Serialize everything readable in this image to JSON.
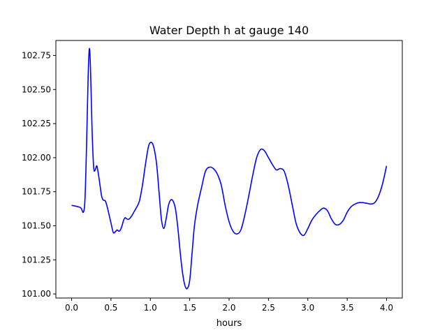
{
  "chart_data": {
    "type": "line",
    "title": "Water Depth h at gauge 140",
    "xlabel": "hours",
    "ylabel": "",
    "xlim": [
      -0.2,
      4.2
    ],
    "ylim": [
      100.97,
      102.86
    ],
    "xticks": [
      0.0,
      0.5,
      1.0,
      1.5,
      2.0,
      2.5,
      3.0,
      3.5,
      4.0
    ],
    "xtick_labels": [
      "0.0",
      "0.5",
      "1.0",
      "1.5",
      "2.0",
      "2.5",
      "3.0",
      "3.5",
      "4.0"
    ],
    "yticks": [
      101.0,
      101.25,
      101.5,
      101.75,
      102.0,
      102.25,
      102.5,
      102.75
    ],
    "ytick_labels": [
      "101.00",
      "101.25",
      "101.50",
      "101.75",
      "102.00",
      "102.25",
      "102.50",
      "102.75"
    ],
    "grid": false,
    "series": [
      {
        "color": "#0000ff",
        "x": [
          0.0,
          0.08,
          0.12,
          0.15,
          0.17,
          0.19,
          0.21,
          0.225,
          0.24,
          0.26,
          0.28,
          0.3,
          0.32,
          0.34,
          0.36,
          0.38,
          0.4,
          0.43,
          0.46,
          0.5,
          0.53,
          0.56,
          0.58,
          0.6,
          0.62,
          0.64,
          0.66,
          0.68,
          0.7,
          0.73,
          0.76,
          0.79,
          0.82,
          0.86,
          0.9,
          0.94,
          0.98,
          1.02,
          1.05,
          1.08,
          1.11,
          1.14,
          1.17,
          1.2,
          1.23,
          1.26,
          1.29,
          1.32,
          1.35,
          1.38,
          1.41,
          1.44,
          1.47,
          1.5,
          1.53,
          1.56,
          1.6,
          1.65,
          1.7,
          1.75,
          1.8,
          1.85,
          1.9,
          1.95,
          2.0,
          2.05,
          2.1,
          2.15,
          2.2,
          2.25,
          2.3,
          2.35,
          2.4,
          2.45,
          2.5,
          2.55,
          2.6,
          2.65,
          2.7,
          2.75,
          2.8,
          2.85,
          2.9,
          2.95,
          3.0,
          3.05,
          3.1,
          3.15,
          3.2,
          3.25,
          3.3,
          3.35,
          3.4,
          3.45,
          3.5,
          3.55,
          3.6,
          3.65,
          3.7,
          3.75,
          3.8,
          3.85,
          3.9,
          3.95,
          4.0
        ],
        "y": [
          101.65,
          101.64,
          101.63,
          101.6,
          101.7,
          102.1,
          102.6,
          102.8,
          102.65,
          102.2,
          101.93,
          101.91,
          101.94,
          101.88,
          101.8,
          101.72,
          101.69,
          101.68,
          101.62,
          101.52,
          101.45,
          101.46,
          101.47,
          101.46,
          101.47,
          101.5,
          101.54,
          101.56,
          101.55,
          101.55,
          101.57,
          101.6,
          101.63,
          101.68,
          101.8,
          101.96,
          102.09,
          102.11,
          102.06,
          101.95,
          101.75,
          101.55,
          101.48,
          101.55,
          101.65,
          101.69,
          101.68,
          101.62,
          101.48,
          101.3,
          101.15,
          101.06,
          101.04,
          101.1,
          101.3,
          101.5,
          101.65,
          101.78,
          101.9,
          101.93,
          101.92,
          101.88,
          101.8,
          101.65,
          101.53,
          101.46,
          101.44,
          101.47,
          101.58,
          101.72,
          101.87,
          102.0,
          102.06,
          102.05,
          102.0,
          101.95,
          101.91,
          101.92,
          101.9,
          101.8,
          101.66,
          101.52,
          101.45,
          101.43,
          101.48,
          101.54,
          101.58,
          101.61,
          101.63,
          101.61,
          101.55,
          101.51,
          101.51,
          101.54,
          101.6,
          101.64,
          101.66,
          101.67,
          101.67,
          101.665,
          101.66,
          101.67,
          101.72,
          101.81,
          101.94
        ]
      }
    ]
  }
}
